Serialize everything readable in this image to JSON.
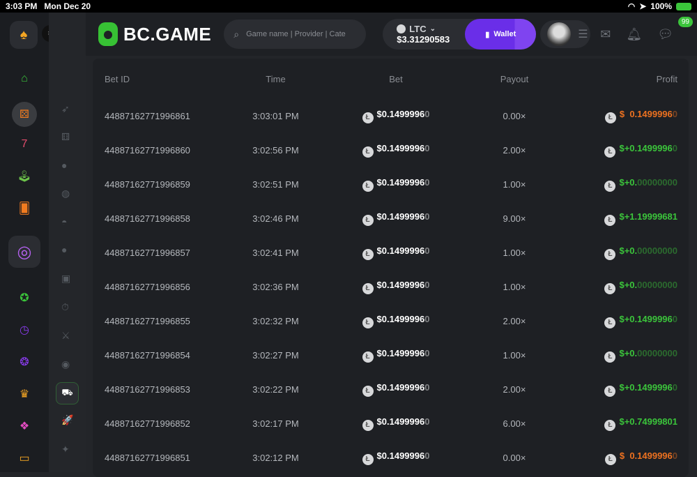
{
  "status": {
    "time": "3:03 PM",
    "date": "Mon Dec 20",
    "battery": "100%"
  },
  "header": {
    "brand": "BC.GAME",
    "search_placeholder": "Game name | Provider | Cate",
    "currency": "LTC",
    "balance": "$3.31290583",
    "wallet_label": "Wallet",
    "chat_badge": "99"
  },
  "sidebar": {
    "icons": [
      "spade-icon",
      "home-icon",
      "dice-icon",
      "slots-icon",
      "joystick-icon",
      "cards-icon",
      "target-icon",
      "star-icon",
      "clock-icon",
      "circle-icon",
      "crown-icon",
      "gift-icon",
      "tv-icon"
    ]
  },
  "table": {
    "headers": [
      "Bet ID",
      "Time",
      "Bet",
      "Payout",
      "Profit"
    ],
    "rows": [
      {
        "id": "44887162771996861",
        "time": "3:03:01 PM",
        "bet": "$0.1499996",
        "bet_dim": "0",
        "payout": "0.00×",
        "profit": "$  0.1499996",
        "profit_dim": "0",
        "type": "loss"
      },
      {
        "id": "44887162771996860",
        "time": "3:02:56 PM",
        "bet": "$0.1499996",
        "bet_dim": "0",
        "payout": "2.00×",
        "profit": "$+0.1499996",
        "profit_dim": "0",
        "type": "win"
      },
      {
        "id": "44887162771996859",
        "time": "3:02:51 PM",
        "bet": "$0.1499996",
        "bet_dim": "0",
        "payout": "1.00×",
        "profit": "$+0.",
        "profit_dim": "00000000",
        "type": "win"
      },
      {
        "id": "44887162771996858",
        "time": "3:02:46 PM",
        "bet": "$0.1499996",
        "bet_dim": "0",
        "payout": "9.00×",
        "profit": "$+1.19999681",
        "profit_dim": "",
        "type": "win"
      },
      {
        "id": "44887162771996857",
        "time": "3:02:41 PM",
        "bet": "$0.1499996",
        "bet_dim": "0",
        "payout": "1.00×",
        "profit": "$+0.",
        "profit_dim": "00000000",
        "type": "win"
      },
      {
        "id": "44887162771996856",
        "time": "3:02:36 PM",
        "bet": "$0.1499996",
        "bet_dim": "0",
        "payout": "1.00×",
        "profit": "$+0.",
        "profit_dim": "00000000",
        "type": "win"
      },
      {
        "id": "44887162771996855",
        "time": "3:02:32 PM",
        "bet": "$0.1499996",
        "bet_dim": "0",
        "payout": "2.00×",
        "profit": "$+0.1499996",
        "profit_dim": "0",
        "type": "win"
      },
      {
        "id": "44887162771996854",
        "time": "3:02:27 PM",
        "bet": "$0.1499996",
        "bet_dim": "0",
        "payout": "1.00×",
        "profit": "$+0.",
        "profit_dim": "00000000",
        "type": "win"
      },
      {
        "id": "44887162771996853",
        "time": "3:02:22 PM",
        "bet": "$0.1499996",
        "bet_dim": "0",
        "payout": "2.00×",
        "profit": "$+0.1499996",
        "profit_dim": "0",
        "type": "win"
      },
      {
        "id": "44887162771996852",
        "time": "3:02:17 PM",
        "bet": "$0.1499996",
        "bet_dim": "0",
        "payout": "6.00×",
        "profit": "$+0.74999801",
        "profit_dim": "",
        "type": "win"
      },
      {
        "id": "44887162771996851",
        "time": "3:02:12 PM",
        "bet": "$0.1499996",
        "bet_dim": "0",
        "payout": "0.00×",
        "profit": "$  0.1499996",
        "profit_dim": "0",
        "type": "loss"
      }
    ]
  },
  "colors": {
    "win": "#3bc43b",
    "loss": "#ec7120",
    "accent": "#6a2ee8",
    "brand": "#37c134"
  }
}
